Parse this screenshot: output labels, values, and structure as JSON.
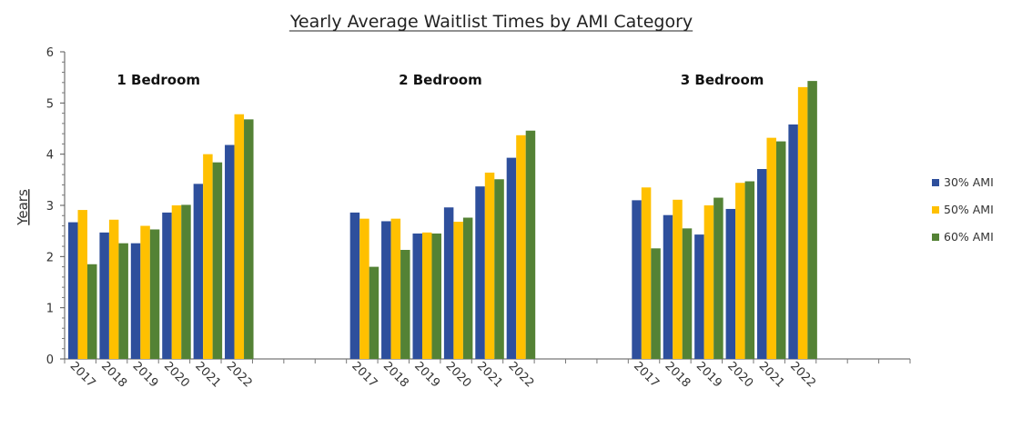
{
  "chart_data": {
    "type": "bar",
    "title": "Yearly Average Waitlist Times by AMI Category",
    "ylabel": "Years",
    "xlabel": "",
    "ylim": [
      0,
      6
    ],
    "yticks": [
      0,
      1,
      2,
      3,
      4,
      5,
      6
    ],
    "grid": false,
    "legend_position": "right",
    "categories": [
      "2017",
      "2018",
      "2019",
      "2020",
      "2021",
      "2022"
    ],
    "groups": [
      {
        "label": "1 Bedroom",
        "series": [
          {
            "name": "30% AMI",
            "values": [
              2.67,
              2.47,
              2.26,
              2.86,
              3.42,
              4.18
            ]
          },
          {
            "name": "50% AMI",
            "values": [
              2.91,
              2.72,
              2.6,
              3.0,
              4.0,
              4.78
            ]
          },
          {
            "name": "60% AMI",
            "values": [
              1.85,
              2.26,
              2.53,
              3.01,
              3.84,
              4.68
            ]
          }
        ]
      },
      {
        "label": "2 Bedroom",
        "series": [
          {
            "name": "30% AMI",
            "values": [
              2.86,
              2.69,
              2.45,
              2.96,
              3.37,
              3.93
            ]
          },
          {
            "name": "50% AMI",
            "values": [
              2.74,
              2.74,
              2.47,
              2.68,
              3.64,
              4.37
            ]
          },
          {
            "name": "60% AMI",
            "values": [
              1.8,
              2.13,
              2.45,
              2.76,
              3.51,
              4.46
            ]
          }
        ]
      },
      {
        "label": "3 Bedroom",
        "series": [
          {
            "name": "30% AMI",
            "values": [
              3.1,
              2.81,
              2.43,
              2.93,
              3.71,
              4.58
            ]
          },
          {
            "name": "50% AMI",
            "values": [
              3.35,
              3.11,
              3.0,
              3.44,
              4.32,
              5.31
            ]
          },
          {
            "name": "60% AMI",
            "values": [
              2.16,
              2.55,
              3.15,
              3.47,
              4.25,
              5.43
            ]
          }
        ]
      }
    ],
    "legend": [
      {
        "name": "30% AMI",
        "color": "#2E4F9C"
      },
      {
        "name": "50% AMI",
        "color": "#FFC000"
      },
      {
        "name": "60% AMI",
        "color": "#548235"
      }
    ]
  }
}
